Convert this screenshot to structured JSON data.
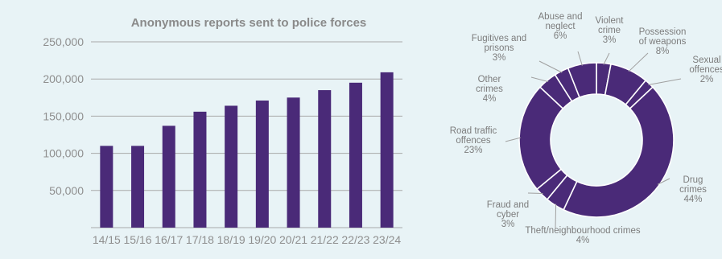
{
  "chart_data": [
    {
      "type": "bar",
      "title": "Anonymous reports sent to police forces",
      "categories": [
        "14/15",
        "15/16",
        "16/17",
        "17/18",
        "18/19",
        "19/20",
        "20/21",
        "21/22",
        "22/23",
        "23/24"
      ],
      "values": [
        110000,
        110000,
        137000,
        156000,
        164000,
        171000,
        175000,
        185000,
        195000,
        209000
      ],
      "ylim": [
        0,
        250000
      ],
      "yticks": [
        "50,000",
        "100,000",
        "150,000",
        "200,000",
        "250,000"
      ],
      "ytick_values": [
        50000,
        100000,
        150000,
        200000,
        250000
      ],
      "grid": true,
      "colors": {
        "bar": "#4a2a78",
        "grid": "#a9a9a9",
        "title": "#8a8a8a",
        "tick": "#8f8f8f"
      }
    },
    {
      "type": "pie",
      "donut": true,
      "slices": [
        {
          "label": [
            "Violent",
            "crime"
          ],
          "pct_label": "3%",
          "value": 3
        },
        {
          "label": [
            "Possession",
            "of weapons"
          ],
          "pct_label": "8%",
          "value": 8
        },
        {
          "label": [
            "Sexual",
            "offences"
          ],
          "pct_label": "2%",
          "value": 2
        },
        {
          "label": [
            "Drug",
            "crimes"
          ],
          "pct_label": "44%",
          "value": 44
        },
        {
          "label": [
            "Theft/neighbourhood crimes"
          ],
          "pct_label": "4%",
          "value": 4
        },
        {
          "label": [
            "Fraud and",
            "cyber"
          ],
          "pct_label": "3%",
          "value": 3
        },
        {
          "label": [
            "Road traffic",
            "offences"
          ],
          "pct_label": "23%",
          "value": 23
        },
        {
          "label": [
            "Other",
            "crimes"
          ],
          "pct_label": "4%",
          "value": 4
        },
        {
          "label": [
            "Fugitives and",
            "prisons"
          ],
          "pct_label": "3%",
          "value": 3
        },
        {
          "label": [
            "Abuse and",
            "neglect"
          ],
          "pct_label": "6%",
          "value": 6
        }
      ],
      "colors": {
        "slice": "#4a2a78",
        "separator": "#ffffff",
        "leader": "#a0a0a0",
        "label": "#7c7c7c"
      }
    }
  ]
}
